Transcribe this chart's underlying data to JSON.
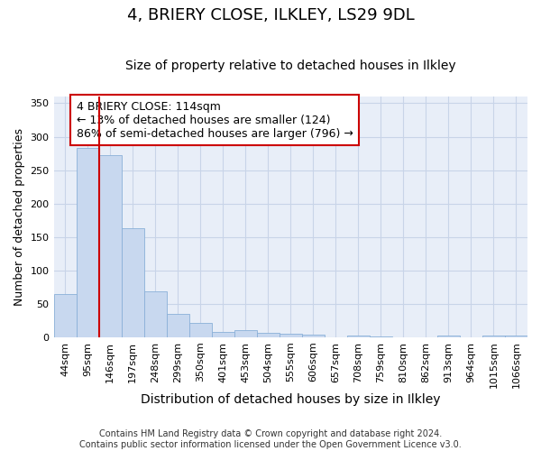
{
  "title": "4, BRIERY CLOSE, ILKLEY, LS29 9DL",
  "subtitle": "Size of property relative to detached houses in Ilkley",
  "xlabel": "Distribution of detached houses by size in Ilkley",
  "ylabel": "Number of detached properties",
  "footer_line1": "Contains HM Land Registry data © Crown copyright and database right 2024.",
  "footer_line2": "Contains public sector information licensed under the Open Government Licence v3.0.",
  "categories": [
    "44sqm",
    "95sqm",
    "146sqm",
    "197sqm",
    "248sqm",
    "299sqm",
    "350sqm",
    "401sqm",
    "453sqm",
    "504sqm",
    "555sqm",
    "606sqm",
    "657sqm",
    "708sqm",
    "759sqm",
    "810sqm",
    "862sqm",
    "913sqm",
    "964sqm",
    "1015sqm",
    "1066sqm"
  ],
  "values": [
    65,
    283,
    273,
    163,
    68,
    35,
    21,
    8,
    10,
    6,
    5,
    4,
    0,
    3,
    1,
    0,
    0,
    2,
    0,
    2,
    2
  ],
  "bar_color": "#c8d8ef",
  "bar_edge_color": "#8ab0d8",
  "grid_color": "#c8d4e8",
  "background_color": "#e8eef8",
  "annotation_text": "4 BRIERY CLOSE: 114sqm\n← 13% of detached houses are smaller (124)\n86% of semi-detached houses are larger (796) →",
  "annotation_box_color": "#ffffff",
  "annotation_box_edge": "#cc0000",
  "red_line_x": 1.5,
  "ylim": [
    0,
    360
  ],
  "yticks": [
    0,
    50,
    100,
    150,
    200,
    250,
    300,
    350
  ],
  "title_fontsize": 13,
  "subtitle_fontsize": 10,
  "ylabel_fontsize": 9,
  "xlabel_fontsize": 10,
  "tick_fontsize": 8,
  "annotation_fontsize": 9,
  "footer_fontsize": 7
}
